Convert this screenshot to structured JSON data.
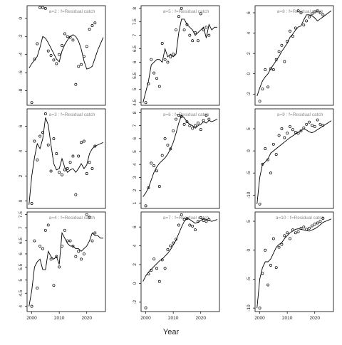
{
  "chart_data": {
    "type": "line",
    "xlabel": "Year",
    "x": [
      1999,
      2000,
      2001,
      2002,
      2003,
      2004,
      2005,
      2006,
      2007,
      2008,
      2009,
      2010,
      2011,
      2012,
      2013,
      2014,
      2015,
      2016,
      2017,
      2018,
      2019,
      2020,
      2021,
      2022,
      2023,
      2024,
      2025,
      2026
    ],
    "colors": {
      "line": "#000000",
      "points": "#000000",
      "label": "#8a8a8a"
    },
    "panels": [
      {
        "label": "a=2 : f=Residual catch",
        "ylim": [
          -9.6,
          1.4
        ],
        "yticks": [
          -8,
          -6,
          -4,
          -2,
          0
        ],
        "xticks_shown": false,
        "fit": [
          -5.5,
          -5.0,
          -4.6,
          -4.2,
          -3.2,
          -2.0,
          -2.2,
          -2.7,
          -3.3,
          -3.9,
          -4.5,
          -4.8,
          -3.6,
          -2.9,
          -2.4,
          -2.0,
          -1.8,
          -2.0,
          -2.5,
          -3.4,
          -4.7,
          -5.6,
          -5.5,
          -5.3,
          -4.4,
          -3.5,
          -2.8,
          -2.1
        ],
        "obs": [
          -9.3,
          -4.5,
          -2.8,
          1.2,
          1.2,
          1.1,
          -3.6,
          -4.1,
          -4.6,
          -5.0,
          -4.0,
          -3.0,
          -1.7,
          -2.0,
          -2.1,
          -2.4,
          -7.3,
          -5.3,
          -5.1,
          -4.2,
          -3.1,
          -1.2,
          -0.8,
          -0.5
        ]
      },
      {
        "label": "a=5 : f=Residual catch",
        "ylim": [
          4.4,
          8.1
        ],
        "yticks": [
          4.5,
          5.0,
          5.5,
          6.0,
          6.5,
          7.0,
          7.5,
          8.0
        ],
        "xticks_shown": false,
        "fit": [
          4.5,
          4.9,
          5.3,
          5.9,
          6.0,
          6.1,
          6.1,
          6.0,
          6.5,
          6.2,
          6.3,
          6.2,
          6.3,
          7.1,
          7.6,
          7.6,
          7.4,
          7.3,
          7.2,
          7.0,
          7.1,
          7.2,
          7.3,
          6.9,
          7.4,
          7.2,
          7.3,
          7.3
        ],
        "obs": [
          4.5,
          5.2,
          6.1,
          5.6,
          5.4,
          5.1,
          6.7,
          6.1,
          6.0,
          6.2,
          6.3,
          7.2,
          7.7,
          8.0,
          7.2,
          7.4,
          7.0,
          6.8,
          7.1,
          6.8,
          7.8,
          7.2,
          7.3,
          7.0
        ]
      },
      {
        "label": "a=8 : f=Residual catch",
        "ylim": [
          -3.1,
          6.7
        ],
        "yticks": [
          -2,
          0,
          2,
          4,
          6
        ],
        "xticks_shown": false,
        "fit": [
          -2.2,
          -1.4,
          -0.7,
          -0.3,
          0.0,
          0.5,
          0.9,
          1.3,
          1.7,
          2.2,
          2.6,
          3.0,
          3.6,
          3.9,
          4.3,
          4.6,
          4.7,
          5.3,
          5.8,
          5.8,
          5.7,
          5.5,
          5.2,
          5.4,
          5.6,
          5.8,
          6.0,
          6.2
        ],
        "obs": [
          -2.7,
          -1.5,
          0.4,
          -1.3,
          0.5,
          0.4,
          1.4,
          2.2,
          2.8,
          1.2,
          3.2,
          4.2,
          3.7,
          4.5,
          6.2,
          6.0,
          4.8,
          5.2,
          5.6,
          5.9,
          6.1,
          6.2,
          6.0,
          5.8
        ]
      },
      {
        "label": "a=3 : f=Residual catch",
        "ylim": [
          -0.6,
          7.4
        ],
        "yticks": [
          0,
          2,
          4,
          6
        ],
        "xticks_shown": false,
        "fit": [
          -0.3,
          2.0,
          3.5,
          4.6,
          4.2,
          5.0,
          6.7,
          6.1,
          4.5,
          3.0,
          2.5,
          2.6,
          3.4,
          2.7,
          2.3,
          2.5,
          2.6,
          2.3,
          2.6,
          3.0,
          2.6,
          2.9,
          3.8,
          4.2,
          4.4,
          4.5,
          4.6,
          4.7
        ],
        "obs": [
          -0.2,
          4.8,
          3.3,
          5.2,
          5.5,
          7.0,
          4.5,
          2.4,
          5.0,
          3.8,
          2.3,
          2.1,
          2.5,
          2.6,
          3.1,
          3.6,
          0.5,
          3.6,
          4.7,
          4.8,
          2.2,
          3.1,
          2.6,
          4.4
        ]
      },
      {
        "label": "a=6 : f=Residual catch",
        "ylim": [
          0.6,
          8.3
        ],
        "yticks": [
          1,
          2,
          3,
          4,
          5,
          6,
          7,
          8
        ],
        "xticks_shown": false,
        "fit": [
          1.5,
          1.8,
          2.2,
          2.8,
          3.4,
          3.8,
          4.1,
          4.3,
          4.5,
          4.8,
          5.2,
          5.7,
          6.4,
          7.2,
          7.8,
          7.6,
          7.3,
          7.1,
          7.0,
          6.8,
          7.0,
          7.1,
          7.3,
          7.2,
          7.4,
          7.3,
          7.4,
          7.5
        ],
        "obs": [
          0.8,
          2.2,
          4.1,
          3.9,
          3.5,
          2.3,
          4.7,
          6.0,
          5.5,
          5.2,
          6.6,
          7.5,
          7.8,
          7.7,
          7.1,
          7.3,
          7.0,
          6.8,
          7.0,
          7.2,
          6.7,
          7.4,
          7.8,
          7.5
        ]
      },
      {
        "label": "a=9 : f=Residual catch",
        "ylim": [
          -13.0,
          9.5
        ],
        "yticks": [
          -10,
          -5,
          0,
          5
        ],
        "xticks_shown": false,
        "fit": [
          -12,
          -6,
          -3,
          -2.5,
          -1.8,
          -0.5,
          0.0,
          0.5,
          1.0,
          1.5,
          2.0,
          2.5,
          3.0,
          3.4,
          3.8,
          4.2,
          4.6,
          5.0,
          4.7,
          4.3,
          4.1,
          4.4,
          4.8,
          5.2,
          5.6,
          6.0,
          6.4,
          6.8
        ],
        "obs": [
          -12,
          -3,
          0.5,
          -2.0,
          -5.0,
          1.5,
          -0.8,
          3.5,
          5.0,
          3.0,
          4.0,
          5.5,
          4.8,
          4.2,
          4.0,
          4.5,
          5.2,
          6.0,
          6.5,
          5.8,
          5.5,
          7.0,
          6.0,
          5.8
        ]
      },
      {
        "label": "a=4 : f=Residual catch",
        "ylim": [
          3.8,
          7.6
        ],
        "yticks": [
          4.0,
          4.5,
          5.0,
          5.5,
          6.0,
          6.5,
          7.0,
          7.5
        ],
        "xticks_shown": false,
        "fit": [
          4.0,
          4.6,
          5.5,
          5.7,
          5.8,
          5.4,
          5.4,
          6.1,
          5.9,
          5.8,
          5.9,
          5.6,
          6.8,
          6.6,
          6.4,
          6.3,
          6.3,
          6.2,
          6.2,
          6.1,
          6.2,
          6.3,
          6.5,
          6.8,
          6.7,
          6.7,
          6.6,
          6.6
        ],
        "obs": [
          4.0,
          6.5,
          4.7,
          6.3,
          6.2,
          6.9,
          7.1,
          5.8,
          4.8,
          5.9,
          5.5,
          6.3,
          6.9,
          6.5,
          6.5,
          6.3,
          5.9,
          6.1,
          5.8,
          6.0,
          7.5,
          7.4,
          6.5,
          6.8
        ]
      },
      {
        "label": "a=7 : f=Residual catch",
        "ylim": [
          -3.0,
          7.6
        ],
        "yticks": [
          -2,
          0,
          2,
          4,
          6
        ],
        "xticks_shown": false,
        "fit": [
          0.2,
          0.8,
          1.2,
          1.5,
          1.8,
          2.1,
          2.4,
          2.6,
          2.9,
          3.2,
          3.6,
          4.1,
          4.6,
          5.3,
          6.0,
          6.6,
          6.9,
          6.8,
          6.6,
          6.4,
          6.5,
          6.7,
          6.9,
          6.8,
          6.7,
          6.6,
          6.7,
          6.8
        ],
        "obs": [
          -2.6,
          1.0,
          1.4,
          2.6,
          1.6,
          0.2,
          2.5,
          1.6,
          3.6,
          4.0,
          4.3,
          4.7,
          6.2,
          7.3,
          6.8,
          6.9,
          6.2,
          6.1,
          5.7,
          6.6,
          7.0,
          6.7,
          6.6,
          6.8
        ]
      },
      {
        "label": "a=10 : f=Residual catch",
        "ylim": [
          -10.6,
          6.6
        ],
        "yticks": [
          -10,
          -5,
          0,
          5
        ],
        "xticks_shown": false,
        "fit": [
          -10,
          -5,
          -3,
          -2.0,
          -2.0,
          -1.5,
          -0.5,
          0.5,
          1.0,
          1.3,
          2.0,
          2.5,
          3.0,
          3.3,
          3.6,
          3.7,
          3.6,
          3.5,
          3.4,
          3.3,
          3.5,
          3.7,
          4.0,
          4.4,
          4.8,
          5.0,
          5.2,
          5.4
        ],
        "obs": [
          -10,
          -4,
          0,
          -6,
          -2.6,
          2,
          -3,
          0.5,
          1.0,
          2.5,
          3.0,
          2.0,
          3.5,
          3.0,
          3.2,
          3.8,
          4.0,
          3.6,
          3.8,
          4.2,
          4.5,
          4.7,
          5.0,
          5.5
        ]
      }
    ],
    "bottom_xticks": [
      2000,
      2010,
      2020
    ]
  }
}
